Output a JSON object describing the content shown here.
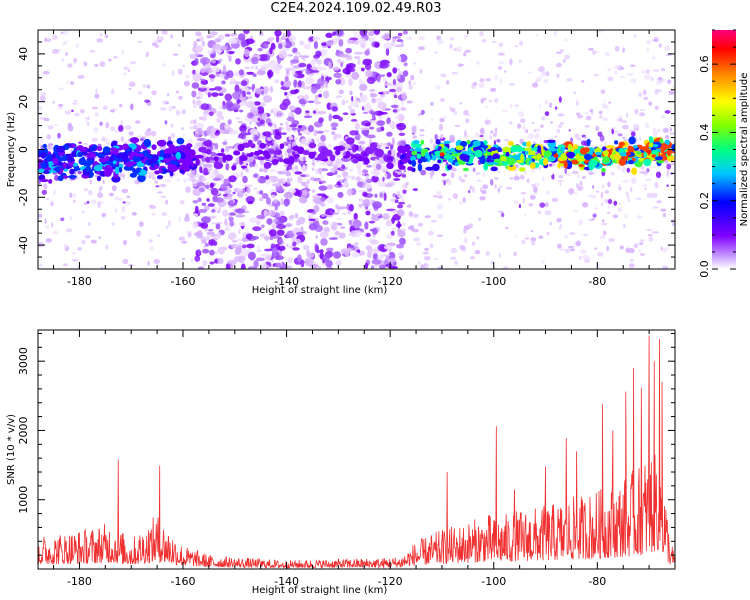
{
  "title": "C2E4.2024.109.02.49.R03",
  "chart_data": [
    {
      "type": "heatmap",
      "xlabel": "Height of straight line (km)",
      "ylabel": "Frequency (Hz)",
      "xlim": [
        -188,
        -65
      ],
      "ylim": [
        -50,
        50
      ],
      "xticks": [
        -180,
        -160,
        -140,
        -120,
        -100,
        -80
      ],
      "yticks": [
        -40,
        -20,
        0,
        20,
        40
      ],
      "colorbar": {
        "label": "Normalized spectral amplitude",
        "range": [
          0,
          0.7
        ],
        "ticks": [
          0.0,
          0.2,
          0.4,
          0.6
        ],
        "colors": [
          "#ffffff",
          "#c8a0ff",
          "#8000ff",
          "#0000ff",
          "#00c8ff",
          "#00ff80",
          "#80ff00",
          "#ffff00",
          "#ff8000",
          "#ff0000",
          "#ff0080"
        ]
      },
      "ridge": {
        "description_points": [
          [
            -188,
            -5
          ],
          [
            -175,
            -5
          ],
          [
            -160,
            -3
          ],
          [
            -120,
            -2
          ],
          [
            -100,
            -2
          ],
          [
            -80,
            -3
          ],
          [
            -66,
            0
          ]
        ],
        "noise_band": [
          -158,
          -117
        ]
      }
    },
    {
      "type": "line",
      "xlabel": "Height of straight line (km)",
      "ylabel": "SNR (10 * v/v)",
      "xlim": [
        -188,
        -65
      ],
      "ylim": [
        0,
        3450
      ],
      "xticks": [
        -180,
        -160,
        -140,
        -120,
        -100,
        -80
      ],
      "yticks": [
        1000,
        2000,
        3000
      ],
      "color": "#f03030",
      "envelope": {
        "x": [
          -188,
          -182,
          -178,
          -174,
          -170,
          -165,
          -160,
          -155,
          -150,
          -140,
          -130,
          -122,
          -118,
          -115,
          -110,
          -105,
          -101,
          -100,
          -95,
          -90,
          -85,
          -80,
          -76,
          -72,
          -70,
          -68,
          -66,
          -65
        ],
        "y": [
          420,
          480,
          520,
          600,
          380,
          700,
          300,
          180,
          150,
          110,
          130,
          140,
          160,
          350,
          500,
          600,
          700,
          650,
          750,
          800,
          900,
          1000,
          1100,
          1300,
          1500,
          1800,
          400,
          200
        ]
      },
      "spikes": [
        {
          "x": -172.5,
          "y": 1580
        },
        {
          "x": -164.5,
          "y": 1490
        },
        {
          "x": -109,
          "y": 1400
        },
        {
          "x": -99.5,
          "y": 2060
        },
        {
          "x": -96,
          "y": 1150
        },
        {
          "x": -90,
          "y": 1480
        },
        {
          "x": -86,
          "y": 1890
        },
        {
          "x": -84,
          "y": 1700
        },
        {
          "x": -79,
          "y": 2380
        },
        {
          "x": -77,
          "y": 2000
        },
        {
          "x": -74.5,
          "y": 2560
        },
        {
          "x": -73,
          "y": 2900
        },
        {
          "x": -71.5,
          "y": 2620
        },
        {
          "x": -70,
          "y": 3370
        },
        {
          "x": -69,
          "y": 3000
        },
        {
          "x": -68,
          "y": 3320
        },
        {
          "x": -67.5,
          "y": 2700
        }
      ]
    }
  ]
}
